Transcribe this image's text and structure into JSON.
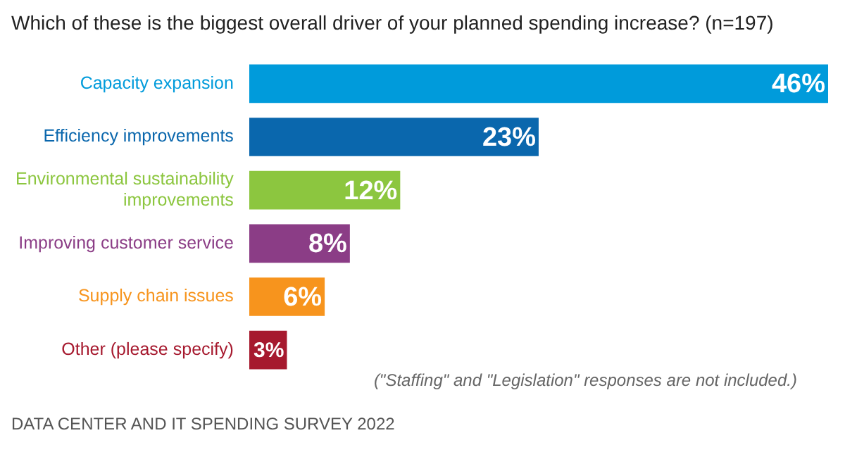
{
  "chart_data": {
    "type": "bar",
    "orientation": "horizontal",
    "title": "Which of these is the biggest overall driver of your planned spending increase? (n=197)",
    "categories": [
      "Capacity expansion",
      "Efficiency improvements",
      "Environmental sustainability improvements",
      "Improving customer service",
      "Supply chain issues",
      "Other (please specify)"
    ],
    "values": [
      46,
      23,
      12,
      8,
      6,
      3
    ],
    "value_labels": [
      "46%",
      "23%",
      "12%",
      "8%",
      "6%",
      "3%"
    ],
    "colors": [
      "#009bdb",
      "#0a67ad",
      "#8cc63f",
      "#8b3d86",
      "#f7941d",
      "#a6192e"
    ],
    "grid": false,
    "legend": false,
    "annotations": [
      "(\"Staffing\" and \"Legislation\" responses are not included.)",
      "DATA CENTER AND IT SPENDING SURVEY 2022"
    ]
  }
}
